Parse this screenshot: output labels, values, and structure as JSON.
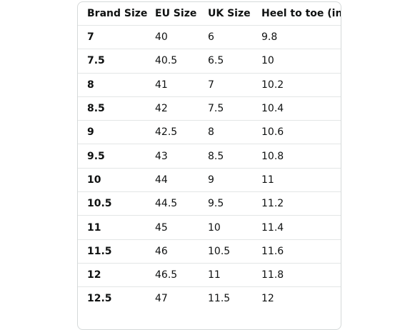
{
  "table": {
    "headers": [
      "Brand Size",
      "EU Size",
      "UK Size",
      "Heel to toe (in)"
    ],
    "rows": [
      [
        "7",
        "40",
        "6",
        "9.8"
      ],
      [
        "7.5",
        "40.5",
        "6.5",
        "10"
      ],
      [
        "8",
        "41",
        "7",
        "10.2"
      ],
      [
        "8.5",
        "42",
        "7.5",
        "10.4"
      ],
      [
        "9",
        "42.5",
        "8",
        "10.6"
      ],
      [
        "9.5",
        "43",
        "8.5",
        "10.8"
      ],
      [
        "10",
        "44",
        "9",
        "11"
      ],
      [
        "10.5",
        "44.5",
        "9.5",
        "11.2"
      ],
      [
        "11",
        "45",
        "10",
        "11.4"
      ],
      [
        "11.5",
        "46",
        "10.5",
        "11.6"
      ],
      [
        "12",
        "46.5",
        "11",
        "11.8"
      ],
      [
        "12.5",
        "47",
        "11.5",
        "12"
      ]
    ]
  }
}
